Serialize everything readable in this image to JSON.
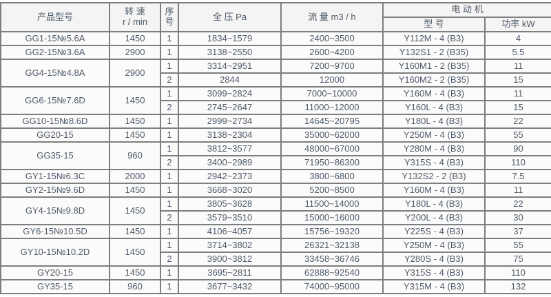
{
  "colors": {
    "text": "#4e5a68",
    "grid_border": "#7e7e7e",
    "outer_border": "#606060",
    "header_bg": "#f4f4f4",
    "row_bg": "#fbfbfb"
  },
  "table": {
    "headers": {
      "product_model": "产品型号",
      "speed_l1": "转 速",
      "speed_l2": "r / min",
      "serial_l1": "序",
      "serial_l2": "号",
      "pressure": "全 压 Pa",
      "flow": "流 量 m3 / h",
      "motor_group": "电 动 机",
      "motor_model": "型 号",
      "motor_power": "功率 kW"
    },
    "groups": [
      {
        "model": "GG1-15№5.6A",
        "speed": "1450",
        "rows": [
          {
            "no": "1",
            "pressure": "1834~1579",
            "flow": "2400~3500",
            "motor": "Y112M - 4 (B3)",
            "power": "4"
          }
        ]
      },
      {
        "model": "GG2-15№3.6A",
        "speed": "2900",
        "rows": [
          {
            "no": "1",
            "pressure": "3138~2550",
            "flow": "2600~4200",
            "motor": "Y132S1 - 2 (B35)",
            "power": "5.5"
          }
        ]
      },
      {
        "model": "GG4-15№4.8A",
        "speed": "2900",
        "rows": [
          {
            "no": "1",
            "pressure": "3314~2951",
            "flow": "7200~9700",
            "motor": "Y160M1 - 2 (B35)",
            "power": "11"
          },
          {
            "no": "2",
            "pressure": "2844",
            "flow": "12000",
            "motor": "Y160M2 - 2 (B35)",
            "power": "15"
          }
        ]
      },
      {
        "model": "GG6-15№7.6D",
        "speed": "1450",
        "rows": [
          {
            "no": "1",
            "pressure": "3099~2824",
            "flow": "7000~10000",
            "motor": "Y160M - 4 (B3)",
            "power": "11"
          },
          {
            "no": "2",
            "pressure": "2745~2647",
            "flow": "11000~12000",
            "motor": "Y160L - 4 (B3)",
            "power": "15"
          }
        ]
      },
      {
        "model": "GG10-15№8.6D",
        "speed": "1450",
        "rows": [
          {
            "no": "1",
            "pressure": "2999~2734",
            "flow": "14645~20795",
            "motor": "Y180L - 4 (B3)",
            "power": "22"
          }
        ]
      },
      {
        "model": "GG20-15",
        "speed": "1450",
        "rows": [
          {
            "no": "1",
            "pressure": "3138~2304",
            "flow": "35000~62000",
            "motor": "Y250M - 4 (B3)",
            "power": "55"
          }
        ]
      },
      {
        "model": "GG35-15",
        "speed": "960",
        "rows": [
          {
            "no": "1",
            "pressure": "3812~3577",
            "flow": "48000~67000",
            "motor": "Y280M - 4 (B3)",
            "power": "90"
          },
          {
            "no": "2",
            "pressure": "3400~2989",
            "flow": "71950~86300",
            "motor": "Y315S - 4 (B3)",
            "power": "110"
          }
        ]
      },
      {
        "model": "GY1-15№6.3C",
        "speed": "2000",
        "rows": [
          {
            "no": "1",
            "pressure": "2942~2373",
            "flow": "3800~6800",
            "motor": "Y132S2 - 2 (B3)",
            "power": "7.5"
          }
        ]
      },
      {
        "model": "GY2-15№9.6D",
        "speed": "1450",
        "rows": [
          {
            "no": "1",
            "pressure": "3668~3020",
            "flow": "5200~8500",
            "motor": "Y160M - 4 (B3)",
            "power": "11"
          }
        ]
      },
      {
        "model": "GY4-15№9.8D",
        "speed": "1450",
        "rows": [
          {
            "no": "1",
            "pressure": "3805~3628",
            "flow": "11500~14000",
            "motor": "Y180L - 4 (B3)",
            "power": "22"
          },
          {
            "no": "2",
            "pressure": "3579~3510",
            "flow": "15000~16000",
            "motor": "Y200L - 4 (B3)",
            "power": "30"
          }
        ]
      },
      {
        "model": "GY6-15№10.5D",
        "speed": "1450",
        "rows": [
          {
            "no": "1",
            "pressure": "4106~4057",
            "flow": "15756~19320",
            "motor": "Y225S - 4 (B3)",
            "power": "37"
          }
        ]
      },
      {
        "model": "GY10-15№10.2D",
        "speed": "1450",
        "rows": [
          {
            "no": "1",
            "pressure": "3714~3802",
            "flow": "26321~32138",
            "motor": "Y250M - 4 (B3)",
            "power": "55"
          },
          {
            "no": "2",
            "pressure": "3900~3812",
            "flow": "33458~36746",
            "motor": "Y280S - 4 (B3)",
            "power": "75"
          }
        ]
      },
      {
        "model": "GY20-15",
        "speed": "1450",
        "rows": [
          {
            "no": "1",
            "pressure": "3695~2811",
            "flow": "62888~92540",
            "motor": "Y315S - 4 (B3)",
            "power": "110"
          }
        ]
      },
      {
        "model": "GY35-15",
        "speed": "960",
        "rows": [
          {
            "no": "1",
            "pressure": "3677~3432",
            "flow": "74000~95000",
            "motor": "Y315M - 4 (B3)",
            "power": "132"
          }
        ]
      }
    ]
  }
}
